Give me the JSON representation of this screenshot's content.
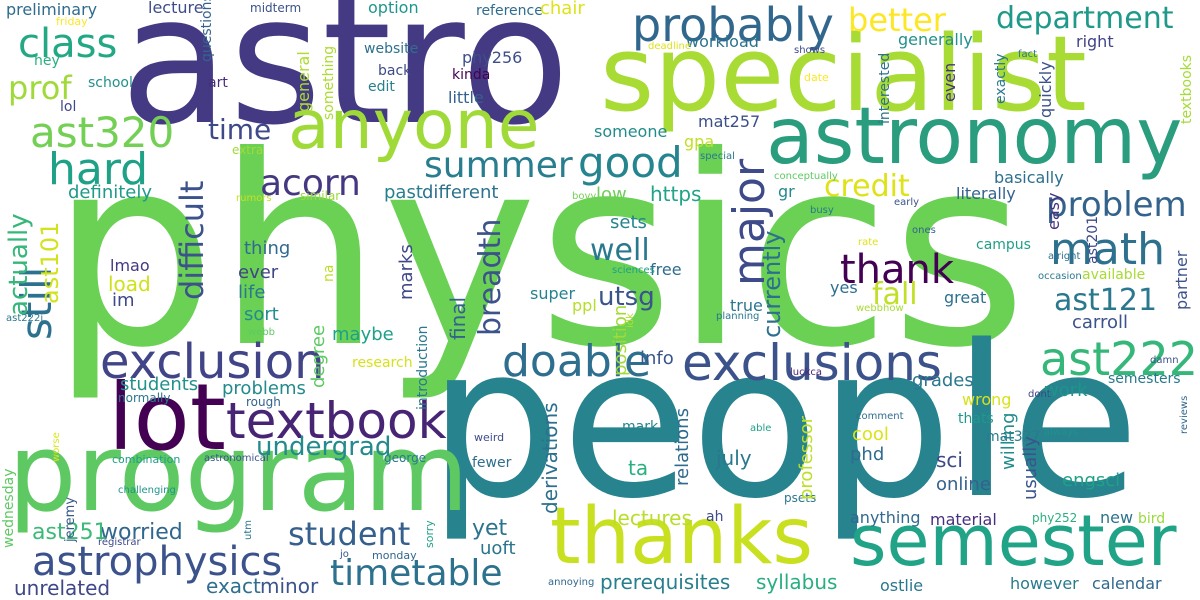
{
  "word_cloud": {
    "words": [
      {
        "text": "physics",
        "color": "#6ad155"
      },
      {
        "text": "people",
        "color": "#27838e"
      },
      {
        "text": "astro",
        "color": "#443a83"
      },
      {
        "text": "specialist",
        "color": "#a8db34"
      },
      {
        "text": "program",
        "color": "#5ec962"
      },
      {
        "text": "anyone",
        "color": "#a0da39"
      },
      {
        "text": "astronomy",
        "color": "#2a9d7e"
      },
      {
        "text": "lot",
        "color": "#440154"
      },
      {
        "text": "thanks",
        "color": "#c8e020"
      },
      {
        "text": "semester",
        "color": "#20a386"
      },
      {
        "text": "exclusions",
        "color": "#3b528b"
      },
      {
        "text": "exclusion",
        "color": "#414487"
      },
      {
        "text": "textbook",
        "color": "#482475"
      },
      {
        "text": "astrophysics",
        "color": "#3b528b"
      },
      {
        "text": "timetable",
        "color": "#2c728e"
      },
      {
        "text": "probably",
        "color": "#31668d"
      },
      {
        "text": "major",
        "color": "#3e4a89"
      },
      {
        "text": "ast222",
        "color": "#35b779"
      },
      {
        "text": "ast320",
        "color": "#73d055"
      },
      {
        "text": "hard",
        "color": "#1fa187"
      },
      {
        "text": "class",
        "color": "#22a884"
      },
      {
        "text": "math",
        "color": "#2d718e"
      },
      {
        "text": "good",
        "color": "#25858e"
      },
      {
        "text": "doable",
        "color": "#2e6e8e"
      },
      {
        "text": "thank",
        "color": "#440154"
      },
      {
        "text": "summer",
        "color": "#287d8e"
      },
      {
        "text": "acorn",
        "color": "#453781"
      },
      {
        "text": "still",
        "color": "#2c728e"
      },
      {
        "text": "student",
        "color": "#355f8d"
      },
      {
        "text": "problem",
        "color": "#33638d"
      },
      {
        "text": "ast121",
        "color": "#2a788e"
      },
      {
        "text": "better",
        "color": "#fde725"
      },
      {
        "text": "department",
        "color": "#1f9a8a"
      },
      {
        "text": "difficult",
        "color": "#3b528b"
      },
      {
        "text": "time",
        "color": "#3e4989"
      },
      {
        "text": "credit",
        "color": "#dde318"
      },
      {
        "text": "fall",
        "color": "#c0df25"
      },
      {
        "text": "prof",
        "color": "#9fda3a"
      },
      {
        "text": "actually",
        "color": "#35b779"
      },
      {
        "text": "well",
        "color": "#29798e"
      },
      {
        "text": "breadth",
        "color": "#3b528b"
      },
      {
        "text": "undergrad",
        "color": "#238a8d"
      },
      {
        "text": "ast101",
        "color": "#d2e21b"
      },
      {
        "text": "utsg",
        "color": "#3a538b"
      },
      {
        "text": "currently",
        "color": "#2d708e"
      },
      {
        "text": "lectures",
        "color": "#b8de29"
      },
      {
        "text": "prerequisites",
        "color": "#277f8e"
      },
      {
        "text": "syllabus",
        "color": "#29af7f"
      },
      {
        "text": "unrelated",
        "color": "#3f4788"
      },
      {
        "text": "exact",
        "color": "#2e6f8e"
      },
      {
        "text": "minor",
        "color": "#3a548c"
      },
      {
        "text": "worried",
        "color": "#31678e"
      },
      {
        "text": "ast251",
        "color": "#3aba76"
      },
      {
        "text": "yet",
        "color": "#2c738e"
      },
      {
        "text": "uoft",
        "color": "#2b748e"
      },
      {
        "text": "students",
        "color": "#21918c"
      },
      {
        "text": "problems",
        "color": "#238a8d"
      },
      {
        "text": "maybe",
        "color": "#1fa088"
      },
      {
        "text": "marks",
        "color": "#3f4889"
      },
      {
        "text": "degree",
        "color": "#5ec962"
      },
      {
        "text": "load",
        "color": "#d0e11c"
      },
      {
        "text": "im",
        "color": "#3f4889"
      },
      {
        "text": "life",
        "color": "#2a788e"
      },
      {
        "text": "sort",
        "color": "#228b8d"
      },
      {
        "text": "ever",
        "color": "#414487"
      },
      {
        "text": "thing",
        "color": "#306a8e"
      },
      {
        "text": "lmao",
        "color": "#453882"
      },
      {
        "text": "definitely",
        "color": "#1f998a"
      },
      {
        "text": "past",
        "color": "#277f8e"
      },
      {
        "text": "different",
        "color": "#2c728e"
      },
      {
        "text": "https",
        "color": "#20a386"
      },
      {
        "text": "low",
        "color": "#6ece58"
      },
      {
        "text": "sets",
        "color": "#25848e"
      },
      {
        "text": "free",
        "color": "#2f6c8e"
      },
      {
        "text": "super",
        "color": "#26828e"
      },
      {
        "text": "ppl",
        "color": "#b5de2b"
      },
      {
        "text": "info",
        "color": "#39568c"
      },
      {
        "text": "final",
        "color": "#33638d"
      },
      {
        "text": "position",
        "color": "#a2da37"
      },
      {
        "text": "derivations",
        "color": "#2d708e"
      },
      {
        "text": "relations",
        "color": "#2f6b8e"
      },
      {
        "text": "ta",
        "color": "#2ab07f"
      },
      {
        "text": "july",
        "color": "#2a778e"
      },
      {
        "text": "professor",
        "color": "#bddf26"
      },
      {
        "text": "phd",
        "color": "#2f6c8e"
      },
      {
        "text": "cool",
        "color": "#dae319"
      },
      {
        "text": "sci",
        "color": "#3e4989"
      },
      {
        "text": "online",
        "color": "#33638d"
      },
      {
        "text": "usually",
        "color": "#3a548c"
      },
      {
        "text": "willing",
        "color": "#228c8d"
      },
      {
        "text": "engsci",
        "color": "#1fa187"
      },
      {
        "text": "material",
        "color": "#46307e"
      },
      {
        "text": "anything",
        "color": "#306a8e"
      },
      {
        "text": "new",
        "color": "#2c728e"
      },
      {
        "text": "bird",
        "color": "#9bd93c"
      },
      {
        "text": "however",
        "color": "#297a8e"
      },
      {
        "text": "calendar",
        "color": "#31688e"
      },
      {
        "text": "ostlie",
        "color": "#2a778e"
      },
      {
        "text": "mat327",
        "color": "#297b8e"
      },
      {
        "text": "thats",
        "color": "#1f998a"
      },
      {
        "text": "wrong",
        "color": "#d8e219"
      },
      {
        "text": "grades",
        "color": "#2a788e"
      },
      {
        "text": "work",
        "color": "#1f948c"
      },
      {
        "text": "semesters",
        "color": "#2a788e"
      },
      {
        "text": "carroll",
        "color": "#3b528b"
      },
      {
        "text": "available",
        "color": "#a8db34"
      },
      {
        "text": "partner",
        "color": "#3b528b"
      },
      {
        "text": "great",
        "color": "#2d708e"
      },
      {
        "text": "yes",
        "color": "#2e6e8e"
      },
      {
        "text": "true",
        "color": "#2b758e"
      },
      {
        "text": "gr",
        "color": "#23898e"
      },
      {
        "text": "basically",
        "color": "#2e6f8e"
      },
      {
        "text": "literally",
        "color": "#33638d"
      },
      {
        "text": "easy",
        "color": "#46327e"
      },
      {
        "text": "mat257",
        "color": "#3c4f8a"
      },
      {
        "text": "gpa",
        "color": "#c0df25"
      },
      {
        "text": "someone",
        "color": "#228c8d"
      },
      {
        "text": "phy256",
        "color": "#3d4e8a"
      },
      {
        "text": "kinda",
        "color": "#440154"
      },
      {
        "text": "little",
        "color": "#33628d"
      },
      {
        "text": "option",
        "color": "#1f968b"
      },
      {
        "text": "reference",
        "color": "#2f6c8e"
      },
      {
        "text": "chair",
        "color": "#dde318"
      },
      {
        "text": "workload",
        "color": "#2c728e"
      },
      {
        "text": "generally",
        "color": "#21918c"
      },
      {
        "text": "right",
        "color": "#414487"
      },
      {
        "text": "ast201",
        "color": "#3e4989"
      },
      {
        "text": "even",
        "color": "#46327e"
      },
      {
        "text": "exactly",
        "color": "#29798e"
      },
      {
        "text": "quickly",
        "color": "#3b528b"
      },
      {
        "text": "textbooks",
        "color": "#a5db36"
      },
      {
        "text": "interested",
        "color": "#2d718e"
      },
      {
        "text": "lecture",
        "color": "#3e4c8a"
      },
      {
        "text": "preliminary",
        "color": "#2f6b8e"
      },
      {
        "text": "friday",
        "color": "#fde725"
      },
      {
        "text": "midterm",
        "color": "#3b528b"
      },
      {
        "text": "hey",
        "color": "#29af7f"
      },
      {
        "text": "school",
        "color": "#21918c"
      },
      {
        "text": "art",
        "color": "#472d7b"
      },
      {
        "text": "lol",
        "color": "#3f4889"
      },
      {
        "text": "questions",
        "color": "#33638d"
      },
      {
        "text": "general",
        "color": "#addc30"
      },
      {
        "text": "website",
        "color": "#2d718e"
      },
      {
        "text": "back",
        "color": "#3e4a89"
      },
      {
        "text": "edit",
        "color": "#27808e"
      },
      {
        "text": "extra",
        "color": "#a2da37"
      },
      {
        "text": "similar",
        "color": "#9bd93c"
      },
      {
        "text": "rumors",
        "color": "#c8e020"
      },
      {
        "text": "something",
        "color": "#addc30"
      },
      {
        "text": "research",
        "color": "#d5e21a"
      },
      {
        "text": "na",
        "color": "#bddf26"
      },
      {
        "text": "rough",
        "color": "#33638d"
      },
      {
        "text": "normally",
        "color": "#2a788e"
      },
      {
        "text": "wednesday",
        "color": "#5ec962"
      },
      {
        "text": "introduction",
        "color": "#2a788e"
      },
      {
        "text": "combination",
        "color": "#1f9e89"
      },
      {
        "text": "astronomical",
        "color": "#3b528b"
      },
      {
        "text": "jeremy",
        "color": "#38598c"
      },
      {
        "text": "registrar",
        "color": "#3e4989"
      },
      {
        "text": "challenging",
        "color": "#1f958b"
      },
      {
        "text": "worse",
        "color": "#dde318"
      },
      {
        "text": "jo",
        "color": "#39558c"
      },
      {
        "text": "utm",
        "color": "#2a768e"
      },
      {
        "text": "weird",
        "color": "#3e4c8a"
      },
      {
        "text": "george",
        "color": "#2a788e"
      },
      {
        "text": "monday",
        "color": "#31678e"
      },
      {
        "text": "annoying",
        "color": "#31688e"
      },
      {
        "text": "fewer",
        "color": "#2e6e8e"
      },
      {
        "text": "mark",
        "color": "#25858e"
      },
      {
        "text": "able",
        "color": "#1fa187"
      },
      {
        "text": "comment",
        "color": "#2e6e8e"
      },
      {
        "text": "psets",
        "color": "#2a788e"
      },
      {
        "text": "ah",
        "color": "#3e4a89"
      },
      {
        "text": "phy252",
        "color": "#29af7f"
      },
      {
        "text": "always",
        "color": "#21918c"
      },
      {
        "text": "luckca",
        "color": "#482576"
      },
      {
        "text": "dont",
        "color": "#414487"
      },
      {
        "text": "sorry",
        "color": "#1fa088"
      },
      {
        "text": "damn",
        "color": "#3b528b"
      },
      {
        "text": "webbhow",
        "color": "#a8db34"
      },
      {
        "text": "occasion",
        "color": "#2a788e"
      },
      {
        "text": "alright",
        "color": "#2d708e"
      },
      {
        "text": "ones",
        "color": "#33638d"
      },
      {
        "text": "rate",
        "color": "#dde318"
      },
      {
        "text": "sciences",
        "color": "#1f9e89"
      },
      {
        "text": "busy",
        "color": "#2a778e"
      },
      {
        "text": "bovy",
        "color": "#73d055"
      },
      {
        "text": "early",
        "color": "#3b528b"
      },
      {
        "text": "conceptually",
        "color": "#5ec962"
      },
      {
        "text": "special",
        "color": "#2a788e"
      },
      {
        "text": "campus",
        "color": "#1f9e89"
      },
      {
        "text": "planning",
        "color": "#2a778e"
      },
      {
        "text": "reviews",
        "color": "#31688e"
      },
      {
        "text": "webb",
        "color": "#5ec962"
      },
      {
        "text": "ast222i",
        "color": "#2a788e"
      },
      {
        "text": "date",
        "color": "#fde725"
      },
      {
        "text": "deadline",
        "color": "#dde318"
      },
      {
        "text": "shows",
        "color": "#3e4989"
      },
      {
        "text": "fact",
        "color": "#2a778e"
      },
      {
        "text": "idk",
        "color": "#b5de2b"
      }
    ]
  }
}
